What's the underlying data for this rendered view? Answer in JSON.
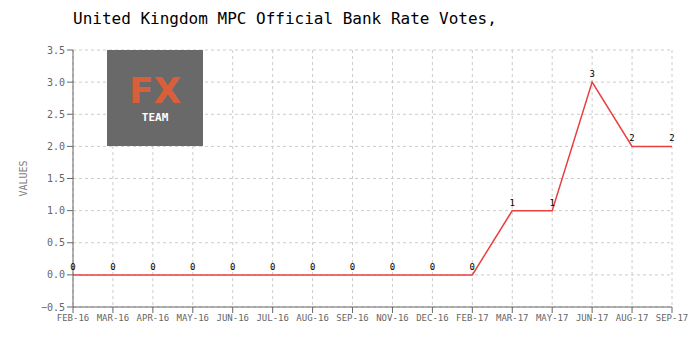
{
  "chart_data": {
    "type": "line",
    "title": "United Kingdom MPC Official Bank Rate Votes,",
    "ylabel": "VALUES",
    "categories": [
      "FEB-16",
      "MAR-16",
      "APR-16",
      "MAY-16",
      "JUN-16",
      "JUL-16",
      "AUG-16",
      "SEP-16",
      "NOV-16",
      "DEC-16",
      "FEB-17",
      "MAR-17",
      "MAY-17",
      "JUN-17",
      "AUG-17",
      "SEP-17"
    ],
    "values": [
      0,
      0,
      0,
      0,
      0,
      0,
      0,
      0,
      0,
      0,
      0,
      1,
      1,
      3,
      2,
      2
    ],
    "color": "#e84040",
    "ylim": [
      -0.5,
      3.5
    ],
    "yticks": [
      {
        "value": -0.5,
        "label": "−0.5"
      },
      {
        "value": 0,
        "label": "0.0"
      },
      0.5,
      {
        "value": 1.0,
        "label": "1.0"
      },
      1.5,
      {
        "value": 2.0,
        "label": "2.0"
      },
      2.5,
      {
        "value": 3.0,
        "label": "3.0"
      },
      3.5
    ],
    "grid": true,
    "data_labels": true,
    "annotations": [
      {
        "text": "FX",
        "color": "#d95f3b",
        "background": "#696969"
      },
      {
        "text": "TEAM",
        "color": "#ffffff",
        "background": "#696969"
      }
    ]
  }
}
